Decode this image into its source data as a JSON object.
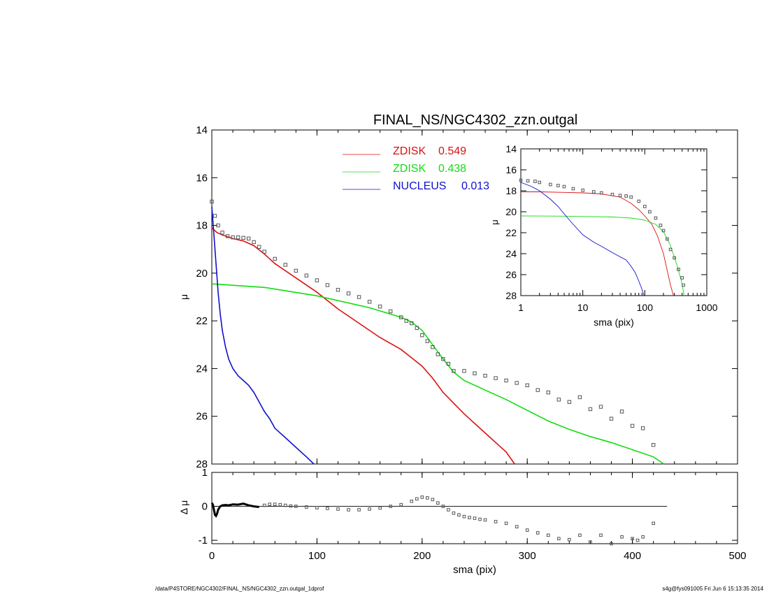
{
  "footer": {
    "path": "/data/P4STORE/NGC4302/FINAL_NS/NGC4302_zzn.outgal_1dprof",
    "stamp": "s4g@fys091005  Fri Jun  6 15:13:35 2014"
  },
  "colors": {
    "zdisk1": "#dd1111",
    "zdisk2": "#11dd11",
    "nucleus": "#1111cc",
    "data": "#555555",
    "axes": "#000000"
  },
  "chart_data": [
    {
      "id": "main",
      "type": "line",
      "title": "FINAL_NS/NGC4302_zzn.outgal",
      "xlabel": "",
      "ylabel": "μ",
      "xlim": [
        0,
        500
      ],
      "ylim": [
        28,
        14
      ],
      "y_inverted": true,
      "xticks": [
        0,
        100,
        200,
        300,
        400,
        500
      ],
      "yticks": [
        14,
        16,
        18,
        20,
        22,
        24,
        26,
        28
      ],
      "legend": {
        "placement": "top-center",
        "entries": [
          {
            "label": "ZDISK",
            "value": "0.549",
            "color": "#dd1111"
          },
          {
            "label": "ZDISK",
            "value": "0.438",
            "color": "#11dd11"
          },
          {
            "label": "NUCLEUS",
            "value": "0.013",
            "color": "#1111cc"
          }
        ]
      },
      "series": [
        {
          "key": "zdisk1",
          "x": [
            0,
            5,
            10,
            20,
            30,
            40,
            50,
            60,
            80,
            100,
            120,
            140,
            160,
            180,
            200,
            210,
            220,
            240,
            260,
            280,
            288
          ],
          "y": [
            18.1,
            18.3,
            18.4,
            18.55,
            18.65,
            18.85,
            19.2,
            19.6,
            20.2,
            20.8,
            21.5,
            22.1,
            22.7,
            23.2,
            23.9,
            24.4,
            25.0,
            25.9,
            26.7,
            27.5,
            28.0
          ]
        },
        {
          "key": "zdisk2",
          "x": [
            0,
            50,
            100,
            150,
            180,
            190,
            200,
            210,
            220,
            230,
            240,
            260,
            280,
            300,
            320,
            340,
            360,
            380,
            400,
            420,
            430
          ],
          "y": [
            20.45,
            20.6,
            20.95,
            21.45,
            21.85,
            22.05,
            22.4,
            23.0,
            23.6,
            24.15,
            24.5,
            24.9,
            25.3,
            25.75,
            26.2,
            26.55,
            26.85,
            27.1,
            27.4,
            27.7,
            28.0
          ]
        },
        {
          "key": "nucleus",
          "x": [
            0,
            1,
            2,
            3,
            4,
            5,
            6,
            8,
            10,
            13,
            16,
            20,
            25,
            30,
            35,
            40,
            45,
            50,
            55,
            60,
            70,
            80,
            90,
            97
          ],
          "y": [
            17.2,
            17.8,
            18.4,
            19.0,
            19.6,
            20.2,
            20.8,
            21.7,
            22.4,
            23.1,
            23.6,
            24.0,
            24.3,
            24.5,
            24.7,
            25.0,
            25.4,
            25.8,
            26.1,
            26.5,
            26.9,
            27.3,
            27.7,
            28.0
          ]
        }
      ],
      "points": {
        "x": [
          0,
          3,
          6,
          10,
          15,
          20,
          25,
          30,
          35,
          40,
          45,
          50,
          60,
          70,
          80,
          90,
          100,
          110,
          120,
          130,
          140,
          150,
          160,
          170,
          180,
          185,
          190,
          195,
          200,
          205,
          210,
          215,
          220,
          225,
          230,
          240,
          250,
          260,
          270,
          280,
          290,
          300,
          310,
          320,
          330,
          340,
          350,
          360,
          370,
          380,
          390,
          400,
          410,
          420
        ],
        "y": [
          17.0,
          17.6,
          18.0,
          18.3,
          18.45,
          18.5,
          18.5,
          18.52,
          18.55,
          18.7,
          18.9,
          19.1,
          19.4,
          19.65,
          19.9,
          20.1,
          20.3,
          20.5,
          20.7,
          20.85,
          21.0,
          21.2,
          21.4,
          21.6,
          21.85,
          22.0,
          22.1,
          22.3,
          22.6,
          22.85,
          23.1,
          23.4,
          23.6,
          23.8,
          24.1,
          24.1,
          24.2,
          24.3,
          24.4,
          24.5,
          24.6,
          24.7,
          24.9,
          25.0,
          25.3,
          25.4,
          25.2,
          25.7,
          25.6,
          26.1,
          25.8,
          26.4,
          26.5,
          27.2
        ]
      }
    },
    {
      "id": "inset",
      "type": "line",
      "title": "",
      "xlabel": "sma (pix)",
      "ylabel": "μ",
      "x_scale": "log",
      "xlim": [
        1,
        1000
      ],
      "ylim": [
        28,
        14
      ],
      "y_inverted": true,
      "xticks": [
        1,
        10,
        100,
        1000
      ],
      "xtick_labels": [
        "1",
        "10",
        "100",
        "1000"
      ],
      "yticks": [
        14,
        16,
        18,
        20,
        22,
        24,
        26,
        28
      ],
      "series": [
        {
          "key": "zdisk1",
          "x": [
            1,
            2,
            5,
            10,
            20,
            40,
            60,
            80,
            100,
            130,
            160,
            200,
            230,
            260,
            290
          ],
          "y": [
            18.1,
            18.1,
            18.15,
            18.2,
            18.3,
            18.6,
            19.2,
            19.8,
            20.4,
            21.2,
            22.3,
            24.0,
            25.6,
            27.0,
            28.0
          ]
        },
        {
          "key": "zdisk2",
          "x": [
            1,
            5,
            10,
            30,
            60,
            100,
            150,
            200,
            250,
            300,
            350,
            400,
            430
          ],
          "y": [
            20.4,
            20.42,
            20.45,
            20.5,
            20.6,
            20.8,
            21.2,
            21.9,
            23.0,
            24.3,
            25.6,
            26.9,
            28.0
          ]
        },
        {
          "key": "nucleus",
          "x": [
            1,
            1.5,
            2,
            3,
            4,
            5,
            7,
            10,
            15,
            20,
            30,
            40,
            50,
            60,
            70,
            80,
            90,
            97
          ],
          "y": [
            17.2,
            17.6,
            18.0,
            18.8,
            19.5,
            20.2,
            21.2,
            22.2,
            22.9,
            23.3,
            23.9,
            24.3,
            24.6,
            25.2,
            25.8,
            26.6,
            27.4,
            28.0
          ]
        }
      ],
      "points": {
        "x": [
          1,
          1.3,
          1.7,
          2,
          3,
          4,
          5,
          7,
          10,
          15,
          20,
          30,
          40,
          50,
          60,
          80,
          100,
          120,
          150,
          180,
          200,
          230,
          260,
          300,
          350,
          400,
          420
        ],
        "y": [
          17.0,
          17.05,
          17.1,
          17.2,
          17.4,
          17.5,
          17.6,
          17.8,
          17.95,
          18.1,
          18.2,
          18.35,
          18.45,
          18.5,
          18.6,
          19.0,
          19.5,
          20.0,
          20.6,
          21.3,
          21.8,
          22.6,
          23.6,
          24.4,
          25.5,
          26.3,
          27.0
        ]
      }
    },
    {
      "id": "residual",
      "type": "scatter",
      "title": "",
      "xlabel": "sma (pix)",
      "ylabel": "Δ μ",
      "xlim": [
        0,
        500
      ],
      "ylim": [
        -1.1,
        1.0
      ],
      "xticks": [
        0,
        100,
        200,
        300,
        400,
        500
      ],
      "xtick_labels": [
        "0",
        "100",
        "200",
        "300",
        "400",
        "500"
      ],
      "yticks": [
        -1,
        0,
        1
      ],
      "ytick_labels": [
        "-1",
        "0",
        "1"
      ],
      "zero_line_x": [
        0,
        433
      ],
      "residual_line": {
        "x": [
          0,
          1,
          2,
          3,
          4,
          5,
          6,
          8,
          10,
          13,
          16,
          20,
          25,
          30,
          35,
          40,
          45
        ],
        "y": [
          0.1,
          0.05,
          -0.1,
          -0.25,
          -0.28,
          -0.22,
          -0.1,
          0.0,
          0.03,
          0.04,
          0.03,
          0.06,
          0.05,
          0.08,
          0.03,
          0.0,
          -0.02
        ]
      },
      "points": {
        "x": [
          50,
          55,
          60,
          65,
          70,
          75,
          80,
          90,
          100,
          110,
          120,
          130,
          140,
          150,
          160,
          170,
          180,
          190,
          195,
          200,
          205,
          210,
          215,
          220,
          225,
          230,
          235,
          240,
          245,
          250,
          255,
          260,
          270,
          280,
          290,
          300,
          310,
          320,
          330,
          340,
          350,
          360,
          370,
          380,
          390,
          400,
          405,
          410,
          420
        ],
        "y": [
          0.03,
          0.06,
          0.06,
          0.05,
          0.03,
          0.01,
          0.0,
          -0.02,
          -0.04,
          -0.06,
          -0.08,
          -0.1,
          -0.1,
          -0.08,
          -0.05,
          0.0,
          0.05,
          0.15,
          0.22,
          0.27,
          0.25,
          0.2,
          0.1,
          0.0,
          -0.1,
          -0.2,
          -0.25,
          -0.3,
          -0.33,
          -0.35,
          -0.38,
          -0.4,
          -0.45,
          -0.5,
          -0.6,
          -0.7,
          -0.78,
          -0.85,
          -0.95,
          -0.98,
          -0.85,
          -1.05,
          -0.85,
          -1.1,
          -0.9,
          -0.95,
          -1.0,
          -0.9,
          -0.5
        ]
      }
    }
  ]
}
